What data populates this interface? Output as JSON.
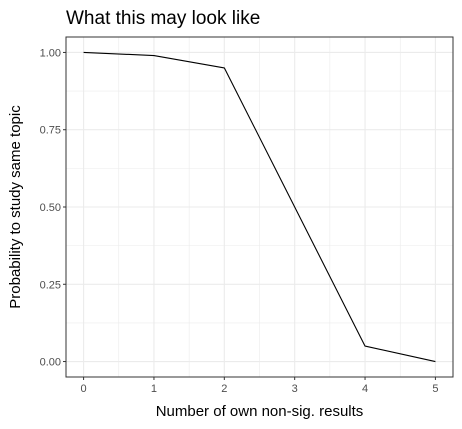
{
  "chart_data": {
    "type": "line",
    "title": "What this may look like",
    "xlabel": "Number of own non-sig. results",
    "ylabel": "Probability to study same topic",
    "x": [
      0,
      1,
      2,
      3,
      4,
      5
    ],
    "series": [
      {
        "values": [
          1.0,
          0.99,
          0.95,
          0.5,
          0.05,
          0.0
        ]
      }
    ],
    "xticks": [
      "0",
      "1",
      "2",
      "3",
      "4",
      "5"
    ],
    "yticks": [
      "0.00",
      "0.25",
      "0.50",
      "0.75",
      "1.00"
    ],
    "xlim": [
      -0.25,
      5.25
    ],
    "ylim": [
      -0.05,
      1.05
    ],
    "grid": true,
    "line_color": "#000000",
    "grid_color": "#ebebeb"
  }
}
